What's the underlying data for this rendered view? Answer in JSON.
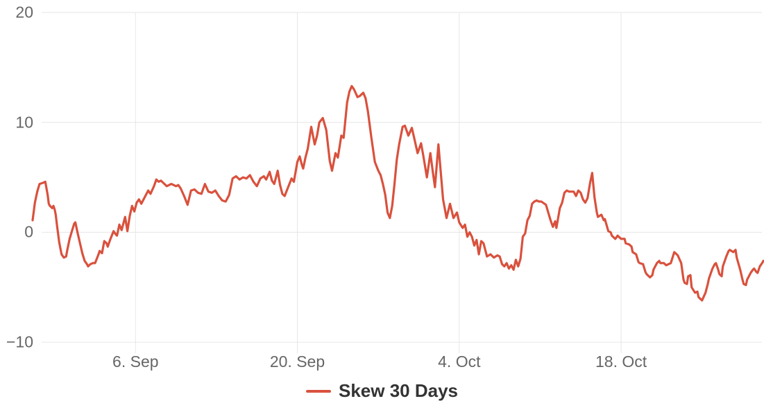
{
  "accent_color": "#d9513d",
  "legend": {
    "label": "Skew 30 Days"
  },
  "chart_data": {
    "type": "line",
    "title": "",
    "xlabel": "",
    "ylabel": "",
    "background": "#ffffff",
    "gridline_color": "#e6e6e6",
    "axis_label_color": "#666666",
    "grid": "on",
    "legend_position": "bottom-center",
    "xlim": [
      -8.9,
      54.3
    ],
    "ylim": [
      -11,
      20
    ],
    "x_unit": "days since 6. Sep",
    "x_ticks": [
      0,
      14,
      28,
      42
    ],
    "x_tick_labels": [
      "6. Sep",
      "20. Sep",
      "4. Oct",
      "18. Oct"
    ],
    "y_ticks": [
      20,
      10,
      0,
      -10
    ],
    "y_tick_labels": [
      "20",
      "10",
      "0",
      "−10"
    ],
    "series": [
      {
        "name": "Skew 30 Days",
        "color": "#d9513d",
        "points": [
          [
            -8.9,
            1.1
          ],
          [
            -8.7,
            2.7
          ],
          [
            -8.5,
            3.7
          ],
          [
            -8.3,
            4.4
          ],
          [
            -8.0,
            4.5
          ],
          [
            -7.8,
            4.6
          ],
          [
            -7.6,
            3.4
          ],
          [
            -7.5,
            2.6
          ],
          [
            -7.4,
            2.4
          ],
          [
            -7.2,
            2.2
          ],
          [
            -7.1,
            2.4
          ],
          [
            -7.0,
            2.1
          ],
          [
            -6.9,
            1.6
          ],
          [
            -6.8,
            0.7
          ],
          [
            -6.6,
            -0.9
          ],
          [
            -6.4,
            -2.0
          ],
          [
            -6.2,
            -2.3
          ],
          [
            -6.0,
            -2.2
          ],
          [
            -5.9,
            -1.6
          ],
          [
            -5.7,
            -0.6
          ],
          [
            -5.5,
            0.1
          ],
          [
            -5.3,
            0.8
          ],
          [
            -5.2,
            0.9
          ],
          [
            -5.0,
            -0.1
          ],
          [
            -4.8,
            -1.0
          ],
          [
            -4.6,
            -1.9
          ],
          [
            -4.4,
            -2.6
          ],
          [
            -4.2,
            -2.9
          ],
          [
            -4.1,
            -3.1
          ],
          [
            -3.9,
            -2.9
          ],
          [
            -3.7,
            -2.8
          ],
          [
            -3.5,
            -2.8
          ],
          [
            -3.2,
            -2.0
          ],
          [
            -3.1,
            -1.7
          ],
          [
            -2.9,
            -1.9
          ],
          [
            -2.7,
            -0.8
          ],
          [
            -2.5,
            -1.0
          ],
          [
            -2.4,
            -1.3
          ],
          [
            -2.2,
            -0.7
          ],
          [
            -1.9,
            0.1
          ],
          [
            -1.7,
            -0.2
          ],
          [
            -1.6,
            -0.3
          ],
          [
            -1.4,
            0.7
          ],
          [
            -1.2,
            0.2
          ],
          [
            -0.9,
            1.4
          ],
          [
            -0.7,
            0.1
          ],
          [
            -0.5,
            1.5
          ],
          [
            -0.3,
            2.4
          ],
          [
            -0.1,
            1.9
          ],
          [
            0.1,
            2.7
          ],
          [
            0.3,
            3.0
          ],
          [
            0.5,
            2.6
          ],
          [
            0.8,
            3.2
          ],
          [
            1.1,
            3.8
          ],
          [
            1.3,
            3.5
          ],
          [
            1.6,
            4.2
          ],
          [
            1.8,
            4.8
          ],
          [
            2.0,
            4.6
          ],
          [
            2.2,
            4.7
          ],
          [
            2.4,
            4.5
          ],
          [
            2.7,
            4.2
          ],
          [
            3.1,
            4.4
          ],
          [
            3.5,
            4.2
          ],
          [
            3.7,
            4.3
          ],
          [
            3.9,
            4.0
          ],
          [
            4.2,
            3.3
          ],
          [
            4.5,
            2.5
          ],
          [
            4.8,
            3.8
          ],
          [
            5.1,
            3.9
          ],
          [
            5.4,
            3.6
          ],
          [
            5.7,
            3.5
          ],
          [
            6.0,
            4.4
          ],
          [
            6.3,
            3.7
          ],
          [
            6.6,
            3.6
          ],
          [
            6.9,
            3.8
          ],
          [
            7.2,
            3.3
          ],
          [
            7.5,
            2.9
          ],
          [
            7.8,
            2.8
          ],
          [
            8.1,
            3.4
          ],
          [
            8.4,
            4.9
          ],
          [
            8.7,
            5.1
          ],
          [
            9.0,
            4.8
          ],
          [
            9.3,
            5.0
          ],
          [
            9.6,
            4.9
          ],
          [
            9.9,
            5.2
          ],
          [
            10.2,
            4.6
          ],
          [
            10.5,
            4.2
          ],
          [
            10.8,
            4.9
          ],
          [
            11.1,
            5.1
          ],
          [
            11.3,
            4.8
          ],
          [
            11.6,
            5.5
          ],
          [
            11.8,
            4.7
          ],
          [
            12.0,
            4.4
          ],
          [
            12.3,
            5.6
          ],
          [
            12.5,
            4.3
          ],
          [
            12.7,
            3.5
          ],
          [
            12.9,
            3.3
          ],
          [
            13.2,
            4.1
          ],
          [
            13.5,
            4.9
          ],
          [
            13.7,
            4.6
          ],
          [
            14.0,
            6.4
          ],
          [
            14.2,
            6.9
          ],
          [
            14.4,
            6.1
          ],
          [
            14.5,
            5.8
          ],
          [
            14.7,
            6.8
          ],
          [
            14.9,
            7.6
          ],
          [
            15.2,
            9.6
          ],
          [
            15.5,
            8.0
          ],
          [
            15.7,
            8.8
          ],
          [
            15.9,
            10.0
          ],
          [
            16.2,
            10.4
          ],
          [
            16.5,
            9.3
          ],
          [
            16.8,
            6.5
          ],
          [
            17.0,
            5.6
          ],
          [
            17.3,
            7.2
          ],
          [
            17.5,
            6.8
          ],
          [
            17.8,
            8.8
          ],
          [
            18.0,
            8.6
          ],
          [
            18.3,
            11.8
          ],
          [
            18.5,
            12.8
          ],
          [
            18.7,
            13.3
          ],
          [
            18.9,
            13.0
          ],
          [
            19.2,
            12.3
          ],
          [
            19.4,
            12.4
          ],
          [
            19.7,
            12.7
          ],
          [
            19.9,
            12.2
          ],
          [
            20.1,
            11.0
          ],
          [
            20.4,
            8.6
          ],
          [
            20.7,
            6.4
          ],
          [
            21.0,
            5.6
          ],
          [
            21.2,
            5.2
          ],
          [
            21.4,
            4.4
          ],
          [
            21.6,
            3.4
          ],
          [
            21.8,
            1.8
          ],
          [
            22.0,
            1.3
          ],
          [
            22.2,
            2.4
          ],
          [
            22.4,
            4.4
          ],
          [
            22.6,
            6.6
          ],
          [
            22.8,
            8.0
          ],
          [
            23.1,
            9.6
          ],
          [
            23.3,
            9.7
          ],
          [
            23.6,
            8.8
          ],
          [
            23.9,
            9.5
          ],
          [
            24.1,
            8.6
          ],
          [
            24.4,
            7.2
          ],
          [
            24.7,
            8.1
          ],
          [
            24.9,
            6.9
          ],
          [
            25.2,
            5.0
          ],
          [
            25.5,
            7.2
          ],
          [
            25.7,
            5.6
          ],
          [
            25.9,
            4.1
          ],
          [
            26.2,
            8.0
          ],
          [
            26.6,
            3.0
          ],
          [
            26.9,
            1.3
          ],
          [
            27.2,
            2.6
          ],
          [
            27.5,
            1.3
          ],
          [
            27.8,
            1.8
          ],
          [
            28.0,
            0.9
          ],
          [
            28.3,
            0.4
          ],
          [
            28.5,
            0.7
          ],
          [
            28.7,
            -0.4
          ],
          [
            28.9,
            0.0
          ],
          [
            29.1,
            -0.4
          ],
          [
            29.3,
            -1.2
          ],
          [
            29.5,
            -0.7
          ],
          [
            29.7,
            -2.0
          ],
          [
            29.9,
            -0.8
          ],
          [
            30.1,
            -1.0
          ],
          [
            30.4,
            -2.2
          ],
          [
            30.7,
            -2.0
          ],
          [
            31.0,
            -2.3
          ],
          [
            31.3,
            -2.1
          ],
          [
            31.5,
            -2.2
          ],
          [
            31.7,
            -2.9
          ],
          [
            31.9,
            -3.1
          ],
          [
            32.1,
            -2.8
          ],
          [
            32.3,
            -3.3
          ],
          [
            32.5,
            -3.0
          ],
          [
            32.7,
            -3.4
          ],
          [
            32.9,
            -2.5
          ],
          [
            33.1,
            -3.1
          ],
          [
            33.3,
            -2.4
          ],
          [
            33.5,
            -0.4
          ],
          [
            33.7,
            -0.1
          ],
          [
            33.9,
            1.1
          ],
          [
            34.1,
            1.5
          ],
          [
            34.3,
            2.6
          ],
          [
            34.5,
            2.8
          ],
          [
            34.7,
            2.9
          ],
          [
            34.9,
            2.8
          ],
          [
            35.1,
            2.8
          ],
          [
            35.5,
            2.5
          ],
          [
            35.7,
            1.8
          ],
          [
            35.9,
            1.1
          ],
          [
            36.1,
            0.5
          ],
          [
            36.3,
            1.0
          ],
          [
            36.4,
            0.4
          ],
          [
            36.7,
            2.2
          ],
          [
            36.9,
            2.7
          ],
          [
            37.1,
            3.6
          ],
          [
            37.3,
            3.8
          ],
          [
            37.5,
            3.7
          ],
          [
            37.9,
            3.7
          ],
          [
            38.1,
            3.3
          ],
          [
            38.3,
            3.8
          ],
          [
            38.5,
            3.6
          ],
          [
            38.7,
            3.0
          ],
          [
            38.9,
            2.7
          ],
          [
            39.1,
            3.1
          ],
          [
            39.3,
            4.4
          ],
          [
            39.5,
            5.4
          ],
          [
            39.7,
            3.2
          ],
          [
            39.9,
            1.8
          ],
          [
            40.0,
            1.4
          ],
          [
            40.3,
            1.6
          ],
          [
            40.5,
            1.1
          ],
          [
            40.6,
            1.2
          ],
          [
            40.9,
            0.1
          ],
          [
            41.1,
            0.0
          ],
          [
            41.2,
            -0.3
          ],
          [
            41.5,
            -0.6
          ],
          [
            41.7,
            -0.3
          ],
          [
            41.8,
            -0.4
          ],
          [
            42.0,
            -0.6
          ],
          [
            42.3,
            -0.6
          ],
          [
            42.4,
            -1.0
          ],
          [
            42.7,
            -1.1
          ],
          [
            42.9,
            -1.3
          ],
          [
            43.0,
            -1.8
          ],
          [
            43.3,
            -2.0
          ],
          [
            43.5,
            -2.7
          ],
          [
            43.6,
            -2.8
          ],
          [
            43.9,
            -2.9
          ],
          [
            44.1,
            -3.6
          ],
          [
            44.2,
            -3.8
          ],
          [
            44.5,
            -4.1
          ],
          [
            44.7,
            -3.9
          ],
          [
            44.8,
            -3.4
          ],
          [
            45.1,
            -2.8
          ],
          [
            45.3,
            -2.6
          ],
          [
            45.4,
            -2.8
          ],
          [
            45.7,
            -2.8
          ],
          [
            45.9,
            -3.0
          ],
          [
            46.3,
            -2.8
          ],
          [
            46.6,
            -1.8
          ],
          [
            46.9,
            -2.1
          ],
          [
            47.2,
            -2.8
          ],
          [
            47.4,
            -4.3
          ],
          [
            47.5,
            -4.6
          ],
          [
            47.7,
            -4.7
          ],
          [
            47.8,
            -4.0
          ],
          [
            48.0,
            -3.9
          ],
          [
            48.1,
            -5.0
          ],
          [
            48.4,
            -5.5
          ],
          [
            48.6,
            -5.4
          ],
          [
            48.7,
            -5.9
          ],
          [
            49.0,
            -6.2
          ],
          [
            49.3,
            -5.5
          ],
          [
            49.5,
            -4.7
          ],
          [
            49.6,
            -4.2
          ],
          [
            49.9,
            -3.3
          ],
          [
            50.1,
            -2.9
          ],
          [
            50.2,
            -2.8
          ],
          [
            50.4,
            -3.4
          ],
          [
            50.5,
            -3.8
          ],
          [
            50.7,
            -4.0
          ],
          [
            50.8,
            -3.1
          ],
          [
            51.1,
            -2.2
          ],
          [
            51.3,
            -1.7
          ],
          [
            51.4,
            -1.6
          ],
          [
            51.7,
            -1.8
          ],
          [
            51.9,
            -1.6
          ],
          [
            52.0,
            -2.3
          ],
          [
            52.3,
            -3.4
          ],
          [
            52.5,
            -4.3
          ],
          [
            52.6,
            -4.7
          ],
          [
            52.8,
            -4.8
          ],
          [
            52.9,
            -4.3
          ],
          [
            53.2,
            -3.7
          ],
          [
            53.4,
            -3.4
          ],
          [
            53.5,
            -3.3
          ],
          [
            53.7,
            -3.6
          ],
          [
            53.8,
            -3.7
          ],
          [
            54.0,
            -3.1
          ],
          [
            54.2,
            -2.8
          ],
          [
            54.3,
            -2.6
          ]
        ]
      }
    ]
  }
}
